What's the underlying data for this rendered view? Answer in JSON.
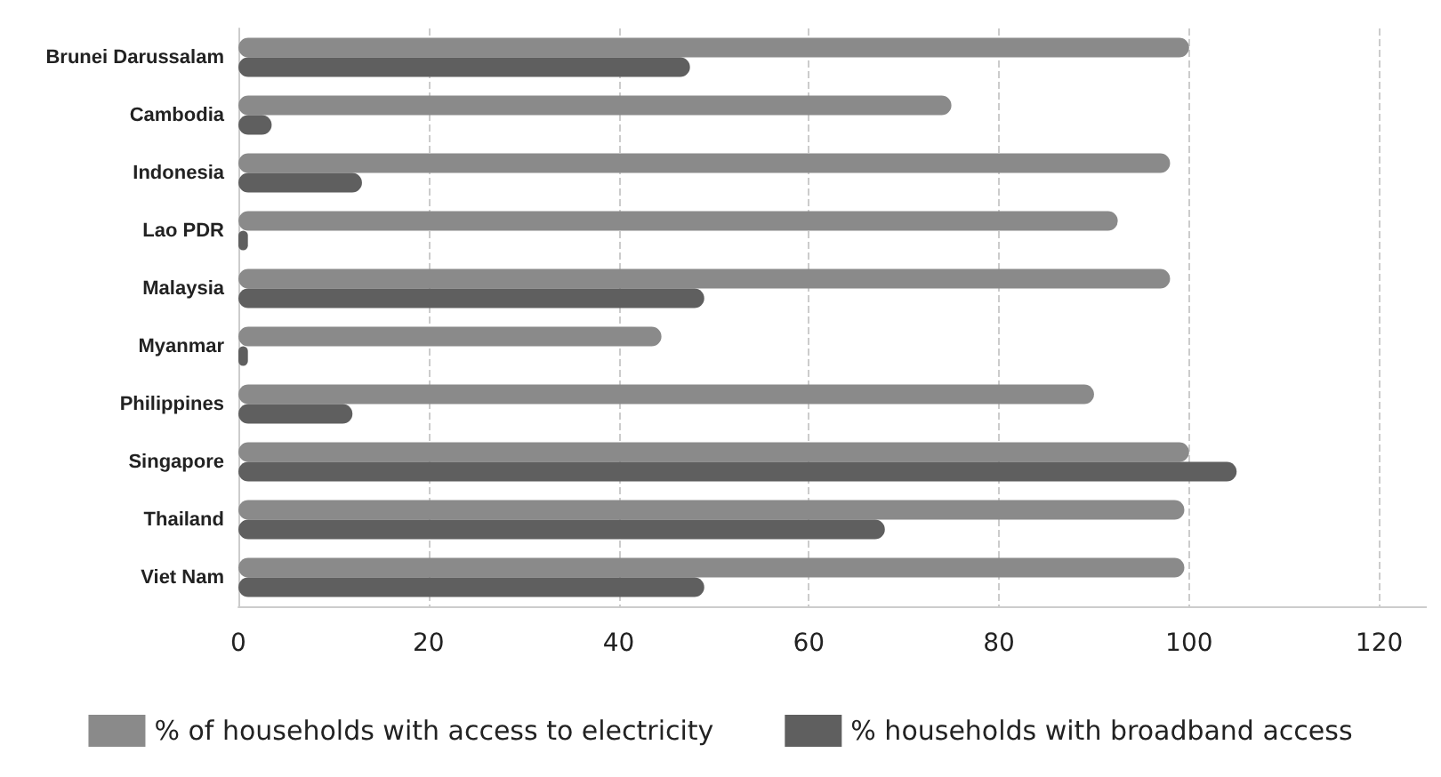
{
  "chart_data": {
    "type": "bar",
    "orientation": "horizontal",
    "categories": [
      "Brunei Darussalam",
      "Cambodia",
      "Indonesia",
      "Lao PDR",
      "Malaysia",
      "Myanmar",
      "Philippines",
      "Singapore",
      "Thailand",
      "Viet Nam"
    ],
    "series": [
      {
        "name": "% of households with access to electricity",
        "color": "#8a8a8a",
        "values": [
          100,
          75,
          98,
          92.5,
          98,
          44.5,
          90,
          100,
          99.5,
          99.5
        ]
      },
      {
        "name": "% households with broadband access",
        "color": "#5f5f5f",
        "values": [
          47.5,
          3.5,
          13,
          1,
          49,
          1,
          12,
          105,
          68,
          49
        ]
      }
    ],
    "xlim": [
      0,
      125
    ],
    "xticks": [
      0,
      20,
      40,
      60,
      80,
      100,
      120
    ],
    "grid": "x",
    "legend": "bottom"
  }
}
